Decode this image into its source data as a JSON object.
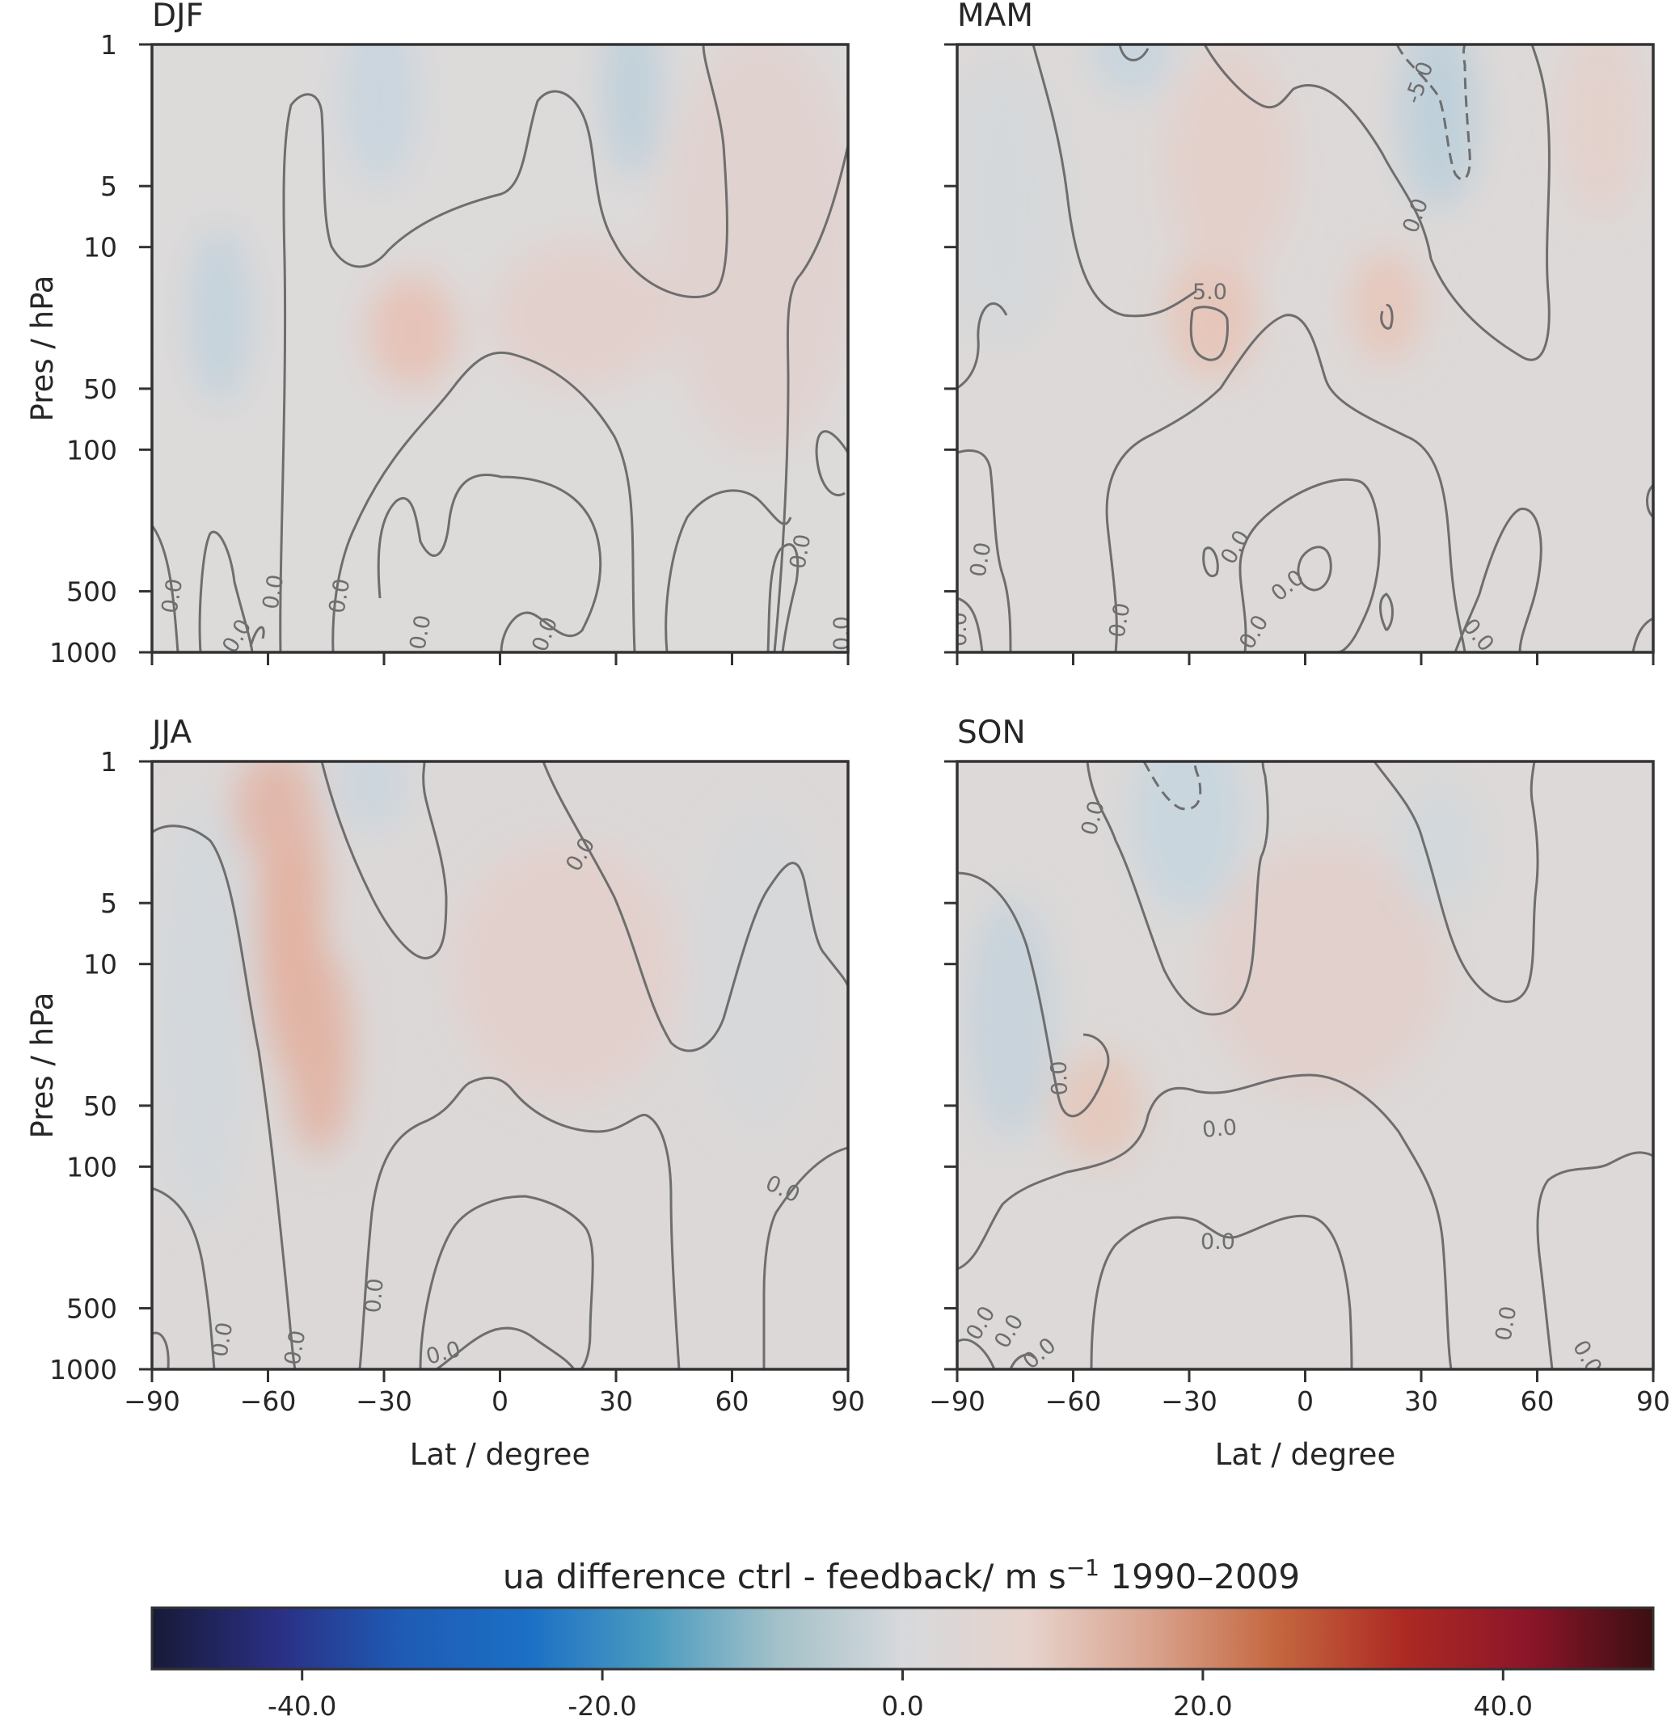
{
  "chart_data": {
    "type": "contour",
    "layout": "2x2 panels",
    "panels": [
      {
        "title": "DJF",
        "contour_labels": [
          "0.0",
          "0.0",
          "0.0",
          "0.0",
          "0.0",
          "0.0",
          "0.0",
          "0.0"
        ]
      },
      {
        "title": "MAM",
        "contour_labels": [
          "-5.0",
          "0.0",
          "5.0",
          "0.0",
          "0.0",
          "0.0",
          "0.0",
          "0.0",
          "0.0",
          "0.0"
        ]
      },
      {
        "title": "JJA",
        "contour_labels": [
          "0.0",
          "0.0",
          "0.0",
          "0.0",
          "0.0",
          "0.0"
        ]
      },
      {
        "title": "SON",
        "contour_labels": [
          "0.0",
          "0.0",
          "0.0",
          "0.0",
          "0.0",
          "0.0",
          "0.0",
          "0.0",
          "0.0"
        ]
      }
    ],
    "x": {
      "label": "Lat / degree",
      "range": [
        -90,
        90
      ],
      "ticks": [
        -90,
        -60,
        -30,
        0,
        30,
        60,
        90
      ],
      "tick_labels": [
        "−90",
        "−60",
        "−30",
        "0",
        "30",
        "60",
        "90"
      ]
    },
    "y": {
      "label": "Pres / hPa",
      "scale": "log",
      "inverted": true,
      "range": [
        1000,
        1
      ],
      "ticks": [
        1,
        5,
        10,
        50,
        100,
        500,
        1000
      ],
      "tick_labels": [
        "1",
        "5",
        "10",
        "50",
        "100",
        "500",
        "1000"
      ]
    },
    "colorbar": {
      "title_text": "ua difference ctrl - feedback/  m s",
      "title_superscript": "−1",
      "title_years": " 1990–2009",
      "range": [
        -50,
        50
      ],
      "ticks": [
        -40,
        -20,
        0,
        20,
        40
      ],
      "tick_labels": [
        "-40.0",
        "-20.0",
        "0.0",
        "20.0",
        "40.0"
      ],
      "colormap": "RdBu_r (balance)",
      "colors": [
        "#171a36",
        "#2a2f83",
        "#1f5bb5",
        "#1b6fc5",
        "#4a9bbf",
        "#a3c1c9",
        "#d7d9dc",
        "#e6d3cc",
        "#d9a28d",
        "#c4663f",
        "#ad2a23",
        "#8c1529",
        "#3b0f12"
      ]
    },
    "contour_line_color": "#6e6e6e",
    "field_colors": {
      "neutral": "#d9d9da",
      "weak_positive": "#e0d1cf",
      "positive": "#e3b8aa",
      "weak_negative": "#cfd8dc",
      "negative": "#bccdd6"
    }
  }
}
